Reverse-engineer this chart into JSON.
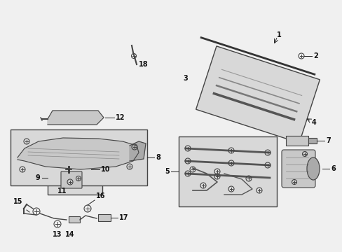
{
  "bg_color": "#f0f0f0",
  "fig_width": 4.89,
  "fig_height": 3.6,
  "dpi": 100,
  "text_color": "#111111",
  "line_color": "#222222",
  "part_color": "#666666",
  "gray_fill": "#c8c8c8",
  "light_fill": "#e0e0e0",
  "box_fill": "#d8d8d8"
}
